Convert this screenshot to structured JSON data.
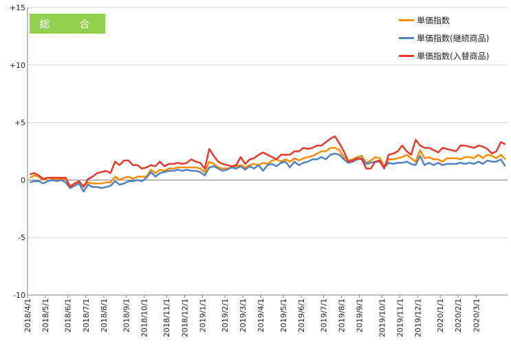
{
  "panel_label": "総　合",
  "colors": {
    "gridline": "#d9d9d9",
    "axis": "#7f7f7f",
    "badge_bg": "#92d050"
  },
  "chart_data": {
    "type": "line",
    "title": "",
    "xlabel": "",
    "ylabel": "",
    "ylim": [
      -10,
      15
    ],
    "y_ticks": [
      "-10",
      "-5",
      "0",
      "+5",
      "+10",
      "+15"
    ],
    "y_tick_values": [
      -10,
      -5,
      0,
      5,
      10,
      15
    ],
    "grid": true,
    "legend_position": "top-right",
    "x_tick_labels": [
      "2018/4/1",
      "2018/5/1",
      "2018/6/1",
      "2018/7/1",
      "2018/8/1",
      "2018/9/1",
      "2018/10/1",
      "2018/11/1",
      "2018/12/1",
      "2019/1/1",
      "2019/2/1",
      "2019/3/1",
      "2019/4/1",
      "2019/5/1",
      "2019/6/1",
      "2019/7/1",
      "2019/8/1",
      "2019/9/1",
      "2019/10/1",
      "2019/11/1",
      "2019/12/1",
      "2020/1/1",
      "2020/2/1",
      "2020/3/1"
    ],
    "x_start": "2018/4/1",
    "x_step": "weekly",
    "series": [
      {
        "name": "単価指数",
        "color": "#ff8c00",
        "values": [
          0.2,
          0.4,
          0.3,
          0.0,
          0.2,
          0.1,
          0.1,
          0.1,
          0.1,
          -0.5,
          -0.3,
          -0.2,
          -0.5,
          -0.2,
          -0.3,
          -0.3,
          -0.3,
          -0.2,
          -0.2,
          0.3,
          0.0,
          0.2,
          0.3,
          0.1,
          0.3,
          0.3,
          0.3,
          0.9,
          0.6,
          0.9,
          0.8,
          1.0,
          1.0,
          1.1,
          1.1,
          1.1,
          1.1,
          1.1,
          1.0,
          0.7,
          1.6,
          1.4,
          1.1,
          1.0,
          1.0,
          1.1,
          1.2,
          1.3,
          1.1,
          1.3,
          1.4,
          1.3,
          1.5,
          1.4,
          1.7,
          1.8,
          1.6,
          1.8,
          1.6,
          1.9,
          1.7,
          1.9,
          2.0,
          2.1,
          2.3,
          2.5,
          2.5,
          2.8,
          2.8,
          2.6,
          2.0,
          1.7,
          1.8,
          2.0,
          2.1,
          1.5,
          1.7,
          2.0,
          1.9,
          1.2,
          1.8,
          1.8,
          1.9,
          2.0,
          2.2,
          1.9,
          1.6,
          2.6,
          1.9,
          2.0,
          1.8,
          1.8,
          1.6,
          1.9,
          1.9,
          1.9,
          1.8,
          2.0,
          2.0,
          1.9,
          2.2,
          1.9,
          2.2,
          2.1,
          1.9,
          2.2,
          1.8
        ],
        "label": ""
      },
      {
        "name": "単価指数(継続商品)",
        "color": "#4f81bd",
        "values": [
          -0.2,
          -0.1,
          -0.1,
          -0.3,
          -0.1,
          0.0,
          -0.1,
          0.0,
          -0.2,
          -0.7,
          -0.5,
          -0.3,
          -1.0,
          -0.4,
          -0.6,
          -0.6,
          -0.7,
          -0.6,
          -0.5,
          -0.1,
          -0.4,
          -0.3,
          -0.1,
          -0.1,
          0.0,
          -0.1,
          0.2,
          0.7,
          0.3,
          0.6,
          0.7,
          0.8,
          0.8,
          0.9,
          0.8,
          0.9,
          0.8,
          0.8,
          0.7,
          0.4,
          1.1,
          1.2,
          1.0,
          0.8,
          0.9,
          1.1,
          1.0,
          1.2,
          0.9,
          1.2,
          1.0,
          1.3,
          0.8,
          1.3,
          1.4,
          1.2,
          1.5,
          1.6,
          1.1,
          1.6,
          1.3,
          1.5,
          1.6,
          1.8,
          1.8,
          2.0,
          1.8,
          2.2,
          2.3,
          2.2,
          1.8,
          1.5,
          1.6,
          1.8,
          1.9,
          1.4,
          1.5,
          1.6,
          1.6,
          1.1,
          1.5,
          1.4,
          1.5,
          1.5,
          1.6,
          1.4,
          1.3,
          2.1,
          1.3,
          1.5,
          1.3,
          1.5,
          1.3,
          1.4,
          1.4,
          1.4,
          1.5,
          1.4,
          1.5,
          1.4,
          1.6,
          1.4,
          1.7,
          1.6,
          1.6,
          1.8,
          1.2
        ],
        "label": ""
      },
      {
        "name": "単価指数(入替商品)",
        "color": "#e8382b",
        "values": [
          0.5,
          0.6,
          0.4,
          0.1,
          0.2,
          0.2,
          0.2,
          0.2,
          0.2,
          -0.6,
          -0.3,
          -0.1,
          -0.6,
          0.1,
          0.3,
          0.6,
          0.7,
          0.8,
          0.6,
          1.6,
          1.3,
          1.7,
          1.7,
          1.3,
          1.3,
          1.0,
          1.1,
          1.3,
          1.2,
          1.6,
          1.2,
          1.4,
          1.4,
          1.5,
          1.4,
          1.5,
          1.8,
          1.6,
          1.5,
          1.0,
          2.7,
          2.1,
          1.6,
          1.4,
          1.3,
          1.2,
          1.3,
          2.0,
          1.4,
          1.8,
          1.9,
          2.2,
          2.4,
          2.2,
          2.0,
          1.8,
          2.2,
          2.2,
          2.2,
          2.5,
          2.5,
          2.8,
          2.7,
          2.8,
          3.0,
          3.0,
          3.3,
          3.6,
          3.8,
          3.2,
          2.5,
          1.6,
          1.7,
          1.9,
          1.8,
          1.0,
          1.0,
          1.6,
          1.7,
          1.0,
          2.2,
          2.3,
          2.5,
          3.0,
          2.5,
          2.2,
          3.5,
          3.0,
          2.8,
          2.8,
          2.6,
          2.4,
          2.8,
          2.7,
          2.6,
          2.5,
          3.0,
          3.0,
          2.9,
          2.8,
          3.0,
          2.9,
          2.7,
          2.3,
          2.5,
          3.3,
          3.1
        ],
        "label": ""
      }
    ]
  }
}
